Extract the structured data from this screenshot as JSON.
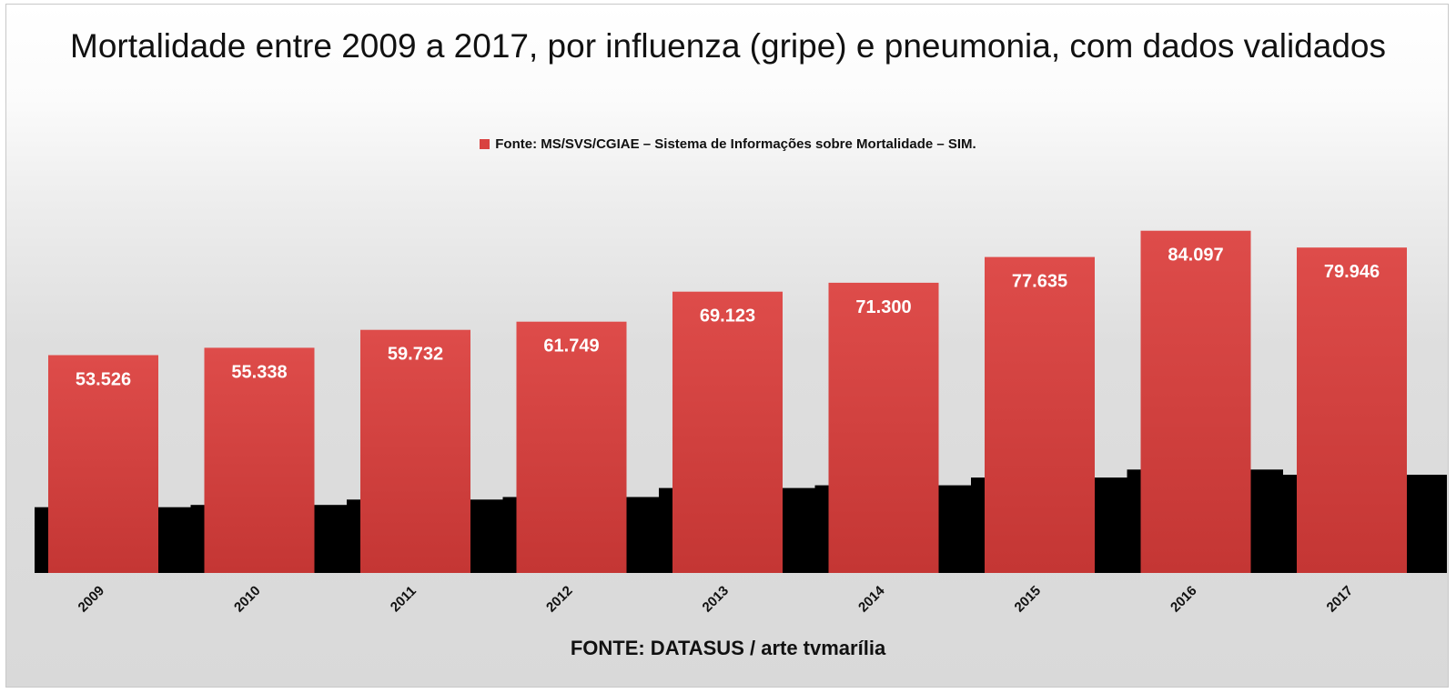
{
  "chart_data": {
    "type": "bar",
    "title": "Mortalidade entre 2009 a 2017, por influenza (gripe) e pneumonia, com dados validados",
    "categories": [
      "2009",
      "2010",
      "2011",
      "2012",
      "2013",
      "2014",
      "2015",
      "2016",
      "2017"
    ],
    "series": [
      {
        "name": "Fonte: MS/SVS/CGIAE – Sistema de Informações sobre Mortalidade – SIM.",
        "values": [
          53526,
          55338,
          59732,
          61749,
          69123,
          71300,
          77635,
          84097,
          79946
        ],
        "labels": [
          "53.526",
          "55.338",
          "59.732",
          "61.749",
          "69.123",
          "71.300",
          "77.635",
          "84.097",
          "79.946"
        ],
        "color": "#d9423f"
      }
    ],
    "xlabel": "FONTE: DATASUS / arte tvmarília",
    "ylabel": "",
    "legend_position": "top",
    "grid": false,
    "shadow_color": "#000000"
  }
}
